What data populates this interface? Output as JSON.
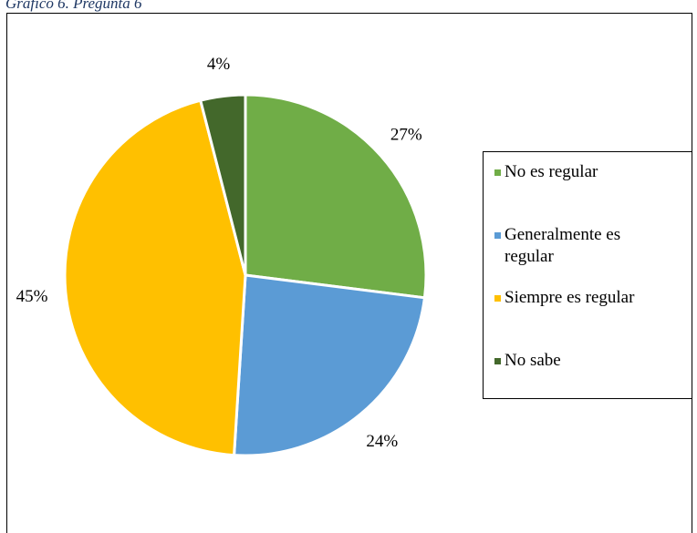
{
  "caption": "Gráfico 6. Pregunta 6",
  "chart_data": {
    "type": "pie",
    "title": "",
    "start_angle_deg": 0,
    "direction": "clockwise",
    "legend_position": "right",
    "slices": [
      {
        "name": "No es regular",
        "value": 27,
        "label": "27%",
        "color": "#70ad47"
      },
      {
        "name": "Generalmente es regular",
        "value": 24,
        "label": "24%",
        "color": "#5b9bd5"
      },
      {
        "name": "Siempre es regular",
        "value": 45,
        "label": "45%",
        "color": "#ffc000"
      },
      {
        "name": "No sabe",
        "value": 4,
        "label": "4%",
        "color": "#43682b"
      }
    ]
  }
}
